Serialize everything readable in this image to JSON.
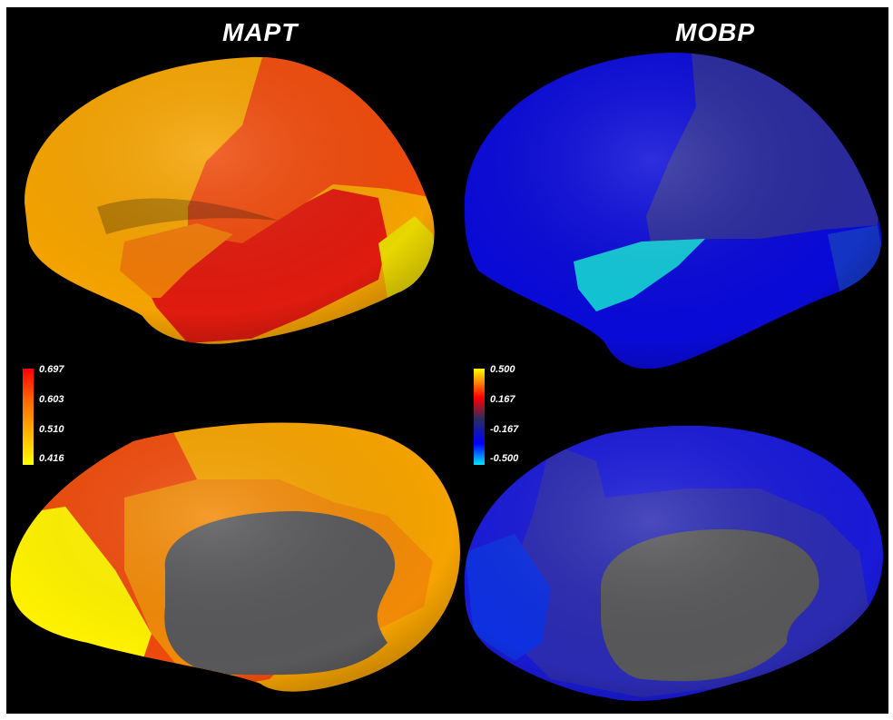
{
  "panels": [
    {
      "title": "MAPT",
      "legend": {
        "ticks": [
          "0.697",
          "0.603",
          "0.510",
          "0.416"
        ],
        "colors": [
          "#ff0000",
          "#ff6a00",
          "#ffb300",
          "#ffff00"
        ]
      }
    },
    {
      "title": "MOBP",
      "legend": {
        "ticks": [
          "0.500",
          "0.167",
          "-0.167",
          "-0.500"
        ],
        "colors": [
          "#ffff00",
          "#ff0000",
          "#2b2b5e",
          "#0000ff",
          "#00e5ff"
        ]
      }
    }
  ]
}
